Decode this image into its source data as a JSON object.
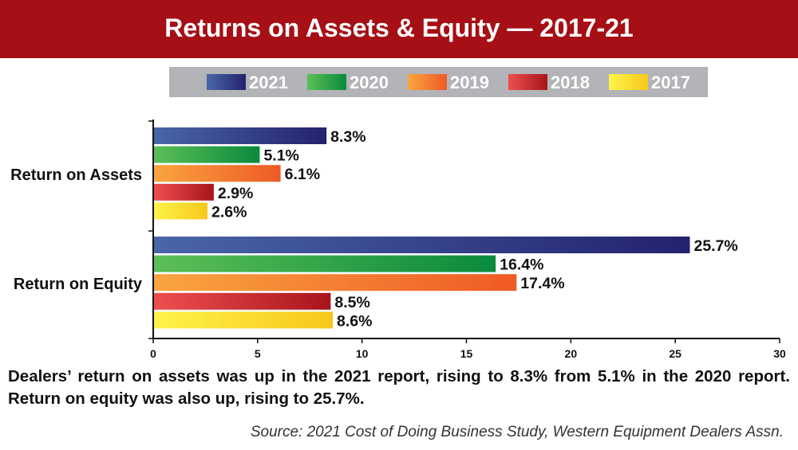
{
  "title": "Returns on Assets & Equity — 2017-21",
  "caption": "Dealers’ return on assets was up in the 2021 report, rising to 8.3% from 5.1% in the 2020 report. Return on equity was also up, rising to 25.7%.",
  "source": "Source: 2021 Cost of Doing Business Study, Western Equipment Dealers Assn.",
  "colors": {
    "title_bg": "#a50f15",
    "legend_bg": "#b2b4b7",
    "2021": [
      "#4a66a8",
      "#23226e"
    ],
    "2020": [
      "#5cbf57",
      "#0a8a3c"
    ],
    "2019": [
      "#f9a540",
      "#ef5a25"
    ],
    "2018": [
      "#ee4f4f",
      "#a8141b"
    ],
    "2017": [
      "#fff34a",
      "#f7c81a"
    ]
  },
  "chart_data": {
    "type": "bar",
    "orientation": "horizontal",
    "categories": [
      "Return on Assets",
      "Return on Equity"
    ],
    "series": [
      {
        "name": "2021",
        "values": [
          8.3,
          25.7
        ],
        "labels": [
          "8.3%",
          "25.7%"
        ]
      },
      {
        "name": "2020",
        "values": [
          5.1,
          16.4
        ],
        "labels": [
          "5.1%",
          "16.4%"
        ]
      },
      {
        "name": "2019",
        "values": [
          6.1,
          17.4
        ],
        "labels": [
          "6.1%",
          "17.4%"
        ]
      },
      {
        "name": "2018",
        "values": [
          2.9,
          8.5
        ],
        "labels": [
          "2.9%",
          "8.5%"
        ]
      },
      {
        "name": "2017",
        "values": [
          2.6,
          8.6
        ],
        "labels": [
          "2.6%",
          "8.6%"
        ]
      }
    ],
    "xlim": [
      0,
      30
    ],
    "xticks": [
      0,
      5,
      10,
      15,
      20,
      25,
      30
    ],
    "legend": "top",
    "grid": false
  }
}
